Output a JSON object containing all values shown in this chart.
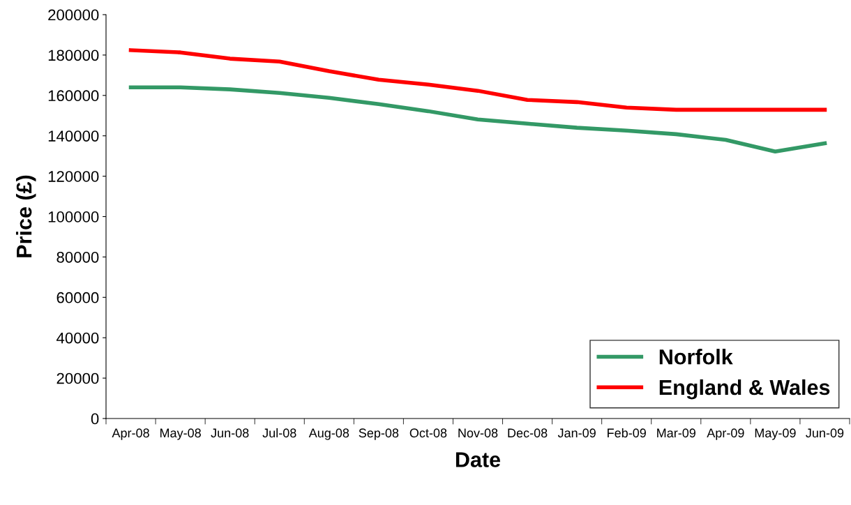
{
  "chart_data": {
    "type": "line",
    "xlabel": "Date",
    "ylabel": "Price (£)",
    "categories": [
      "Apr-08",
      "May-08",
      "Jun-08",
      "Jul-08",
      "Aug-08",
      "Sep-08",
      "Oct-08",
      "Nov-08",
      "Dec-08",
      "Jan-09",
      "Feb-09",
      "Mar-09",
      "Apr-09",
      "May-09",
      "Jun-09"
    ],
    "series": [
      {
        "name": "Norfolk",
        "color": "#339966",
        "values": [
          164000,
          164000,
          163000,
          161200,
          158800,
          155700,
          152200,
          148100,
          146000,
          144000,
          142600,
          140800,
          138000,
          132200,
          136300
        ]
      },
      {
        "name": "England & Wales",
        "color": "#ff0000",
        "values": [
          182400,
          181300,
          178200,
          176800,
          172000,
          167800,
          165400,
          162300,
          157800,
          156700,
          154000,
          152900,
          152900,
          152900,
          152900
        ]
      }
    ],
    "ylim": [
      0,
      200000
    ],
    "yticks": [
      0,
      20000,
      40000,
      60000,
      80000,
      100000,
      120000,
      140000,
      160000,
      180000,
      200000
    ],
    "grid": false,
    "legend": "bottom right",
    "marker": "none",
    "line_style": "solid"
  }
}
